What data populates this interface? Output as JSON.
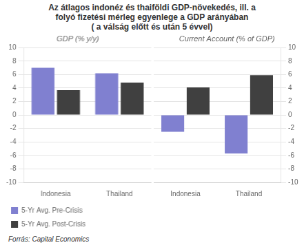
{
  "chart_data": [
    {
      "type": "bar",
      "title": [
        "Az átlagos indonéz és thaiföldi GDP-növekedés, ill. a",
        "folyó fizetési mérleg egyenlege a GDP arányában",
        "( a válság előtt és után 5 évvel)"
      ],
      "subtitle": "GDP (% y/y)",
      "annotations": [
        "Forrás: Capital Economics"
      ],
      "categories": [
        "Indonesia",
        "Thailand"
      ],
      "series": [
        {
          "name": "5-Yr Avg. Pre-Crisis",
          "color": "#8080d0",
          "values": [
            7.0,
            6.2
          ]
        },
        {
          "name": "5-Yr Avg. Post-Crisis",
          "color": "#404040",
          "values": [
            3.7,
            4.8
          ]
        }
      ],
      "ylim": [
        -10,
        10
      ],
      "yticks": [
        -10,
        -8,
        -6,
        -4,
        -2,
        0,
        2,
        4,
        6,
        8,
        10
      ],
      "grid": true,
      "legend": "lower left"
    },
    {
      "type": "bar",
      "subtitle": "Current Account (% of GDP)",
      "categories": [
        "Indonesia",
        "Thailand"
      ],
      "series": [
        {
          "name": "5-Yr Avg. Pre-Crisis",
          "color": "#8080d0",
          "values": [
            -2.5,
            -5.7
          ]
        },
        {
          "name": "5-Yr Avg. Post-Crisis",
          "color": "#404040",
          "values": [
            4.1,
            5.9
          ]
        }
      ],
      "ylim": [
        -10,
        10
      ],
      "yticks": [
        -10,
        -8,
        -6,
        -4,
        -2,
        0,
        2,
        4,
        6,
        8,
        10
      ],
      "grid": true,
      "legend": false
    }
  ]
}
